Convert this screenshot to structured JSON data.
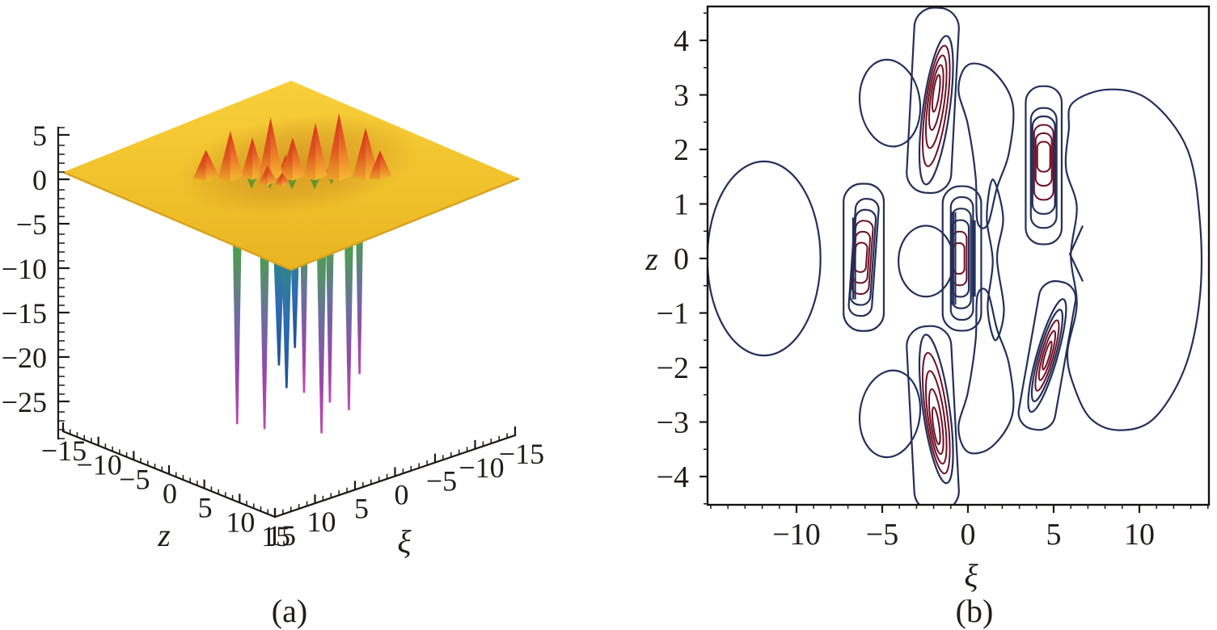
{
  "figure": {
    "background": "#ffffff",
    "captions": {
      "a": "(a)",
      "b": "(b)"
    }
  },
  "chart_data": [
    {
      "type": "surface3d",
      "panel": "a",
      "axes": {
        "vertical": {
          "ticks": [
            5,
            0,
            -5,
            -10,
            -15,
            -20,
            -25
          ],
          "minor_step": 1
        },
        "z_axis": {
          "label": "z",
          "ticks": [
            -15,
            -10,
            -5,
            0,
            5,
            10,
            15
          ],
          "minor_step": 1
        },
        "xi_axis": {
          "label": "ξ",
          "ticks": [
            15,
            10,
            5,
            0,
            -5,
            -10,
            -15
          ],
          "minor_step": 1
        }
      },
      "surface": {
        "plane_level": 1,
        "colors": {
          "plane_light": "#f8d03a",
          "plane": "#f1c32d",
          "plane_dark": "#e9b522",
          "edge": "#d9a21f",
          "shadow": "#c0761a",
          "peak_red": "#d3301b",
          "peak_orange": "#e9702a",
          "peak_yellow": "#f6bc30",
          "crevice_green": "#5f9433",
          "well_green": "#3aa046",
          "well_blue": "#2f6db4",
          "well_purple": "#9349a8",
          "well_magenta": "#c247ae"
        },
        "peaks": [
          {
            "z": -5.2,
            "xi": 6.0,
            "h": 4.0,
            "w": 1.6
          },
          {
            "z": -3.6,
            "xi": 4.4,
            "h": 6.2,
            "w": 1.5
          },
          {
            "z": -2.4,
            "xi": 2.7,
            "h": 5.3,
            "w": 1.4,
            "g": true
          },
          {
            "z": -1.2,
            "xi": 1.5,
            "h": 7.6,
            "w": 1.5,
            "g": true
          },
          {
            "z": -0.5,
            "xi": 2.6,
            "h": 2.8,
            "w": 1.1
          },
          {
            "z": 0.3,
            "xi": 0.1,
            "h": 5.4,
            "w": 1.5,
            "g": true
          },
          {
            "z": 1.7,
            "xi": -1.5,
            "h": 7.0,
            "w": 1.5,
            "g": true
          },
          {
            "z": 3.3,
            "xi": -3.0,
            "h": 8.2,
            "w": 1.6
          },
          {
            "z": 4.8,
            "xi": -5.0,
            "h": 6.4,
            "w": 1.6
          },
          {
            "z": 5.8,
            "xi": -5.9,
            "h": 3.9,
            "w": 1.4
          },
          {
            "z": 2.0,
            "xi": -3.4,
            "h": 1.8,
            "w": 1.0,
            "g": true
          },
          {
            "z": -0.9,
            "xi": -0.2,
            "h": 2.9,
            "w": 1.0
          },
          {
            "z": 0.6,
            "xi": 1.8,
            "h": 2.1,
            "w": 0.9
          }
        ],
        "wells": [
          {
            "z": -3.4,
            "xi": 3.7,
            "depth": -27.0,
            "w": 1.1,
            "tint": "magenta"
          },
          {
            "z": -1.6,
            "xi": 1.9,
            "depth": -27.5,
            "w": 1.2,
            "tint": "magenta"
          },
          {
            "z": -0.9,
            "xi": 0.7,
            "depth": -20.5,
            "w": 1.7,
            "tint": "blue"
          },
          {
            "z": -0.35,
            "xi": 0.25,
            "depth": -23.0,
            "w": 1.5,
            "tint": "blue"
          },
          {
            "z": 0.15,
            "xi": -0.35,
            "depth": -18.5,
            "w": 1.4,
            "tint": "blue"
          },
          {
            "z": 0.8,
            "xi": -0.9,
            "depth": -23.5,
            "w": 1.0,
            "tint": "magenta"
          },
          {
            "z": 2.0,
            "xi": -2.0,
            "depth": -28.0,
            "w": 1.2,
            "tint": "magenta"
          },
          {
            "z": 2.6,
            "xi": -2.5,
            "depth": -24.5,
            "w": 1.0,
            "tint": "magenta"
          },
          {
            "z": 4.3,
            "xi": -3.3,
            "depth": -25.0,
            "w": 1.1,
            "tint": "magenta"
          },
          {
            "z": 4.9,
            "xi": -4.1,
            "depth": -21.0,
            "w": 0.9,
            "tint": "magenta"
          }
        ]
      }
    },
    {
      "type": "contour",
      "panel": "b",
      "xlabel": "ξ",
      "ylabel": "z",
      "xlim": [
        -15.2,
        14.06
      ],
      "ylim": [
        -4.52,
        4.62
      ],
      "x_ticks": [
        -10,
        -5,
        0,
        5,
        10
      ],
      "y_ticks": [
        4,
        3,
        2,
        1,
        0,
        -1,
        -2,
        -3,
        -4
      ],
      "x_minor_step": 1,
      "y_minor_step": 0.5,
      "grid": false,
      "legend": false,
      "colors": {
        "outer_contour": "#232f5a",
        "inner_contour": "#6e0f24"
      },
      "features": [
        {
          "kind": "ellipse",
          "name": "left-large-contour",
          "cx": -11.9,
          "cy": 0.0,
          "rx": 3.3,
          "ry": 1.78
        },
        {
          "kind": "ellipse",
          "name": "top-left-blob",
          "cx": -4.55,
          "cy": 2.85,
          "rx": 1.75,
          "ry": 0.8,
          "rot": -8
        },
        {
          "kind": "ellipse",
          "name": "bottom-left-blob",
          "cx": -4.55,
          "cy": -2.85,
          "rx": 1.75,
          "ry": 0.8,
          "rot": 8
        },
        {
          "kind": "ellipse",
          "name": "center-left-oval",
          "cx": -2.45,
          "cy": -0.05,
          "rx": 1.6,
          "ry": 0.65
        },
        {
          "kind": "path",
          "name": "right-large-contour",
          "closed": true,
          "pts": [
            [
              6.1,
              2.85
            ],
            [
              8.2,
              3.1
            ],
            [
              10.6,
              2.9
            ],
            [
              12.8,
              2.0
            ],
            [
              13.55,
              0.6
            ],
            [
              13.5,
              -0.8
            ],
            [
              12.6,
              -2.05
            ],
            [
              10.8,
              -2.95
            ],
            [
              8.8,
              -3.15
            ],
            [
              7.2,
              -2.95
            ],
            [
              6.25,
              -2.4
            ],
            [
              5.8,
              -1.75
            ],
            [
              6.35,
              -0.85
            ],
            [
              6.0,
              0.05
            ],
            [
              6.35,
              0.95
            ],
            [
              5.72,
              1.65
            ],
            [
              5.88,
              2.35
            ]
          ]
        },
        {
          "kind": "path",
          "name": "upper-snake",
          "closed": true,
          "pts": [
            [
              0.0,
              3.55
            ],
            [
              1.4,
              3.45
            ],
            [
              2.6,
              2.85
            ],
            [
              2.4,
              1.95
            ],
            [
              1.7,
              1.3
            ],
            [
              1.15,
              0.62
            ],
            [
              0.55,
              0.68
            ],
            [
              0.45,
              1.5
            ],
            [
              0.0,
              2.45
            ],
            [
              -0.55,
              3.1
            ]
          ]
        },
        {
          "kind": "path",
          "name": "lower-snake",
          "closed": true,
          "pts": [
            [
              0.0,
              -3.55
            ],
            [
              1.4,
              -3.45
            ],
            [
              2.6,
              -2.85
            ],
            [
              2.4,
              -1.95
            ],
            [
              1.7,
              -1.3
            ],
            [
              1.15,
              -0.62
            ],
            [
              0.55,
              -0.68
            ],
            [
              0.45,
              -1.5
            ],
            [
              0.0,
              -2.45
            ],
            [
              -0.55,
              -3.1
            ]
          ]
        },
        {
          "kind": "path",
          "name": "center-right-band",
          "closed": true,
          "pts": [
            [
              1.45,
              1.45
            ],
            [
              2.05,
              0.75
            ],
            [
              1.7,
              0.0
            ],
            [
              2.1,
              -0.95
            ],
            [
              1.6,
              -1.5
            ],
            [
              1.15,
              -0.9
            ],
            [
              1.45,
              -0.05
            ],
            [
              1.1,
              0.75
            ]
          ]
        },
        {
          "kind": "chevron",
          "name": "mid-right-chevron",
          "pts": [
            [
              6.7,
              0.6
            ],
            [
              5.95,
              0.08
            ],
            [
              6.7,
              -0.42
            ]
          ]
        },
        {
          "kind": "cluster",
          "name": "cluster-top-center",
          "shape": "lens",
          "cx": -1.85,
          "cy": 2.72,
          "w": 1.55,
          "h": 2.75,
          "rot": 8,
          "navy": 1,
          "maroon": 4,
          "fillCore": true,
          "vbunch": 0.3,
          "outer": {
            "w": 2.6,
            "h": 3.4,
            "dx": -0.2,
            "dy": 0.18,
            "rot": 3
          }
        },
        {
          "kind": "cluster",
          "name": "cluster-bottom-center",
          "shape": "lens",
          "cx": -1.85,
          "cy": -2.76,
          "w": 1.55,
          "h": 2.75,
          "rot": -8,
          "navy": 1,
          "maroon": 4,
          "fillCore": true,
          "vbunch": -0.3,
          "outer": {
            "w": 2.6,
            "h": 3.4,
            "dx": -0.2,
            "dy": -0.18,
            "rot": -3
          }
        },
        {
          "kind": "cluster",
          "name": "cluster-right-upper",
          "shape": "stadium",
          "cx": 4.42,
          "cy": 1.66,
          "w": 1.5,
          "h": 2.2,
          "navy": 2,
          "maroon": 3,
          "vbunch": 0.25,
          "outer": {
            "w": 2.1,
            "h": 2.9,
            "dy": 0.05
          }
        },
        {
          "kind": "cluster",
          "name": "cluster-right-lower",
          "shape": "lens",
          "cx": 4.62,
          "cy": -1.78,
          "w": 1.2,
          "h": 2.15,
          "rot": 16,
          "navy": 2,
          "maroon": 3,
          "fillCore": true,
          "outer": {
            "w": 2.15,
            "h": 2.75,
            "rot": 10
          }
        },
        {
          "kind": "cluster",
          "name": "cluster-left-middle",
          "shape": "stadium",
          "cx": -6.08,
          "cy": 0.02,
          "w": 1.35,
          "h": 2.15,
          "rot": 4,
          "navy": 2,
          "maroon": 3,
          "bunch": -0.5,
          "outer": {
            "w": 2.35,
            "h": 2.7
          }
        },
        {
          "kind": "cluster",
          "name": "cluster-center",
          "shape": "stadium",
          "cx": -0.35,
          "cy": 0.0,
          "w": 1.3,
          "h": 2.25,
          "navy": 3,
          "maroon": 2,
          "bunch": -0.55,
          "outer": {
            "w": 2.25,
            "h": 2.65
          }
        },
        {
          "kind": "bar",
          "name": "dense-edge-center-left",
          "x": -0.98,
          "z1": -0.85,
          "z2": 0.85,
          "lines": 3
        },
        {
          "kind": "bar",
          "name": "dense-edge-center-right",
          "x": 0.28,
          "z1": -0.7,
          "z2": 0.7,
          "lines": 2
        },
        {
          "kind": "bar",
          "name": "dense-edge-left-cluster",
          "x": -6.7,
          "z1": -0.75,
          "z2": 0.75,
          "lines": 2
        }
      ]
    }
  ]
}
